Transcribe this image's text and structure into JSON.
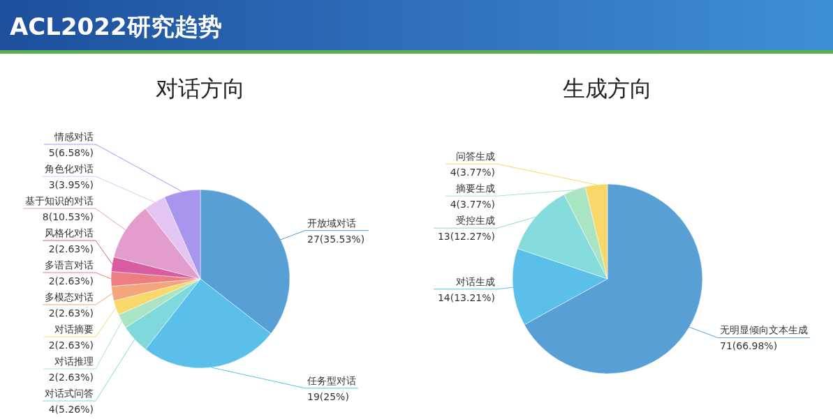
{
  "chart_data": [
    {
      "type": "pie",
      "title": "对话方向",
      "annotations": [
        "ACL2022研究趋势"
      ],
      "categories": [
        "开放域对话",
        "任务型对话",
        "对话式问答",
        "对话推理",
        "对话摘要",
        "多模态对话",
        "多语言对话",
        "风格化对话",
        "基于知识的对话",
        "角色化对话",
        "情感对话"
      ],
      "values": [
        27,
        19,
        4,
        2,
        2,
        2,
        2,
        2,
        8,
        3,
        5
      ],
      "value_labels": [
        "27(35.53%)",
        "19(25%)",
        "4(5.26%)",
        "2(2.63%)",
        "2(2.63%)",
        "2(2.63%)",
        "2(2.63%)",
        "2(2.63%)",
        "8(10.53%)",
        "3(3.95%)",
        "5(6.58%)"
      ],
      "colors": [
        "#579fd5",
        "#5ac0e9",
        "#7fd9dc",
        "#a9e5c2",
        "#f8d86a",
        "#f3a57c",
        "#ee7d82",
        "#d95ca1",
        "#e39dcd",
        "#e4c4f1",
        "#a896ee"
      ]
    },
    {
      "type": "pie",
      "title": "生成方向",
      "categories": [
        "无明显倾向文本生成",
        "对话生成",
        "受控生成",
        "摘要生成",
        "问答生成"
      ],
      "values": [
        71,
        14,
        13,
        4,
        4
      ],
      "value_labels": [
        "71(66.98%)",
        "14(13.21%)",
        "13(12.27%)",
        "4(3.77%)",
        "4(3.77%)"
      ],
      "colors": [
        "#579fd5",
        "#5ac0e9",
        "#86dcdc",
        "#a9e5c2",
        "#f8d86a"
      ]
    }
  ]
}
